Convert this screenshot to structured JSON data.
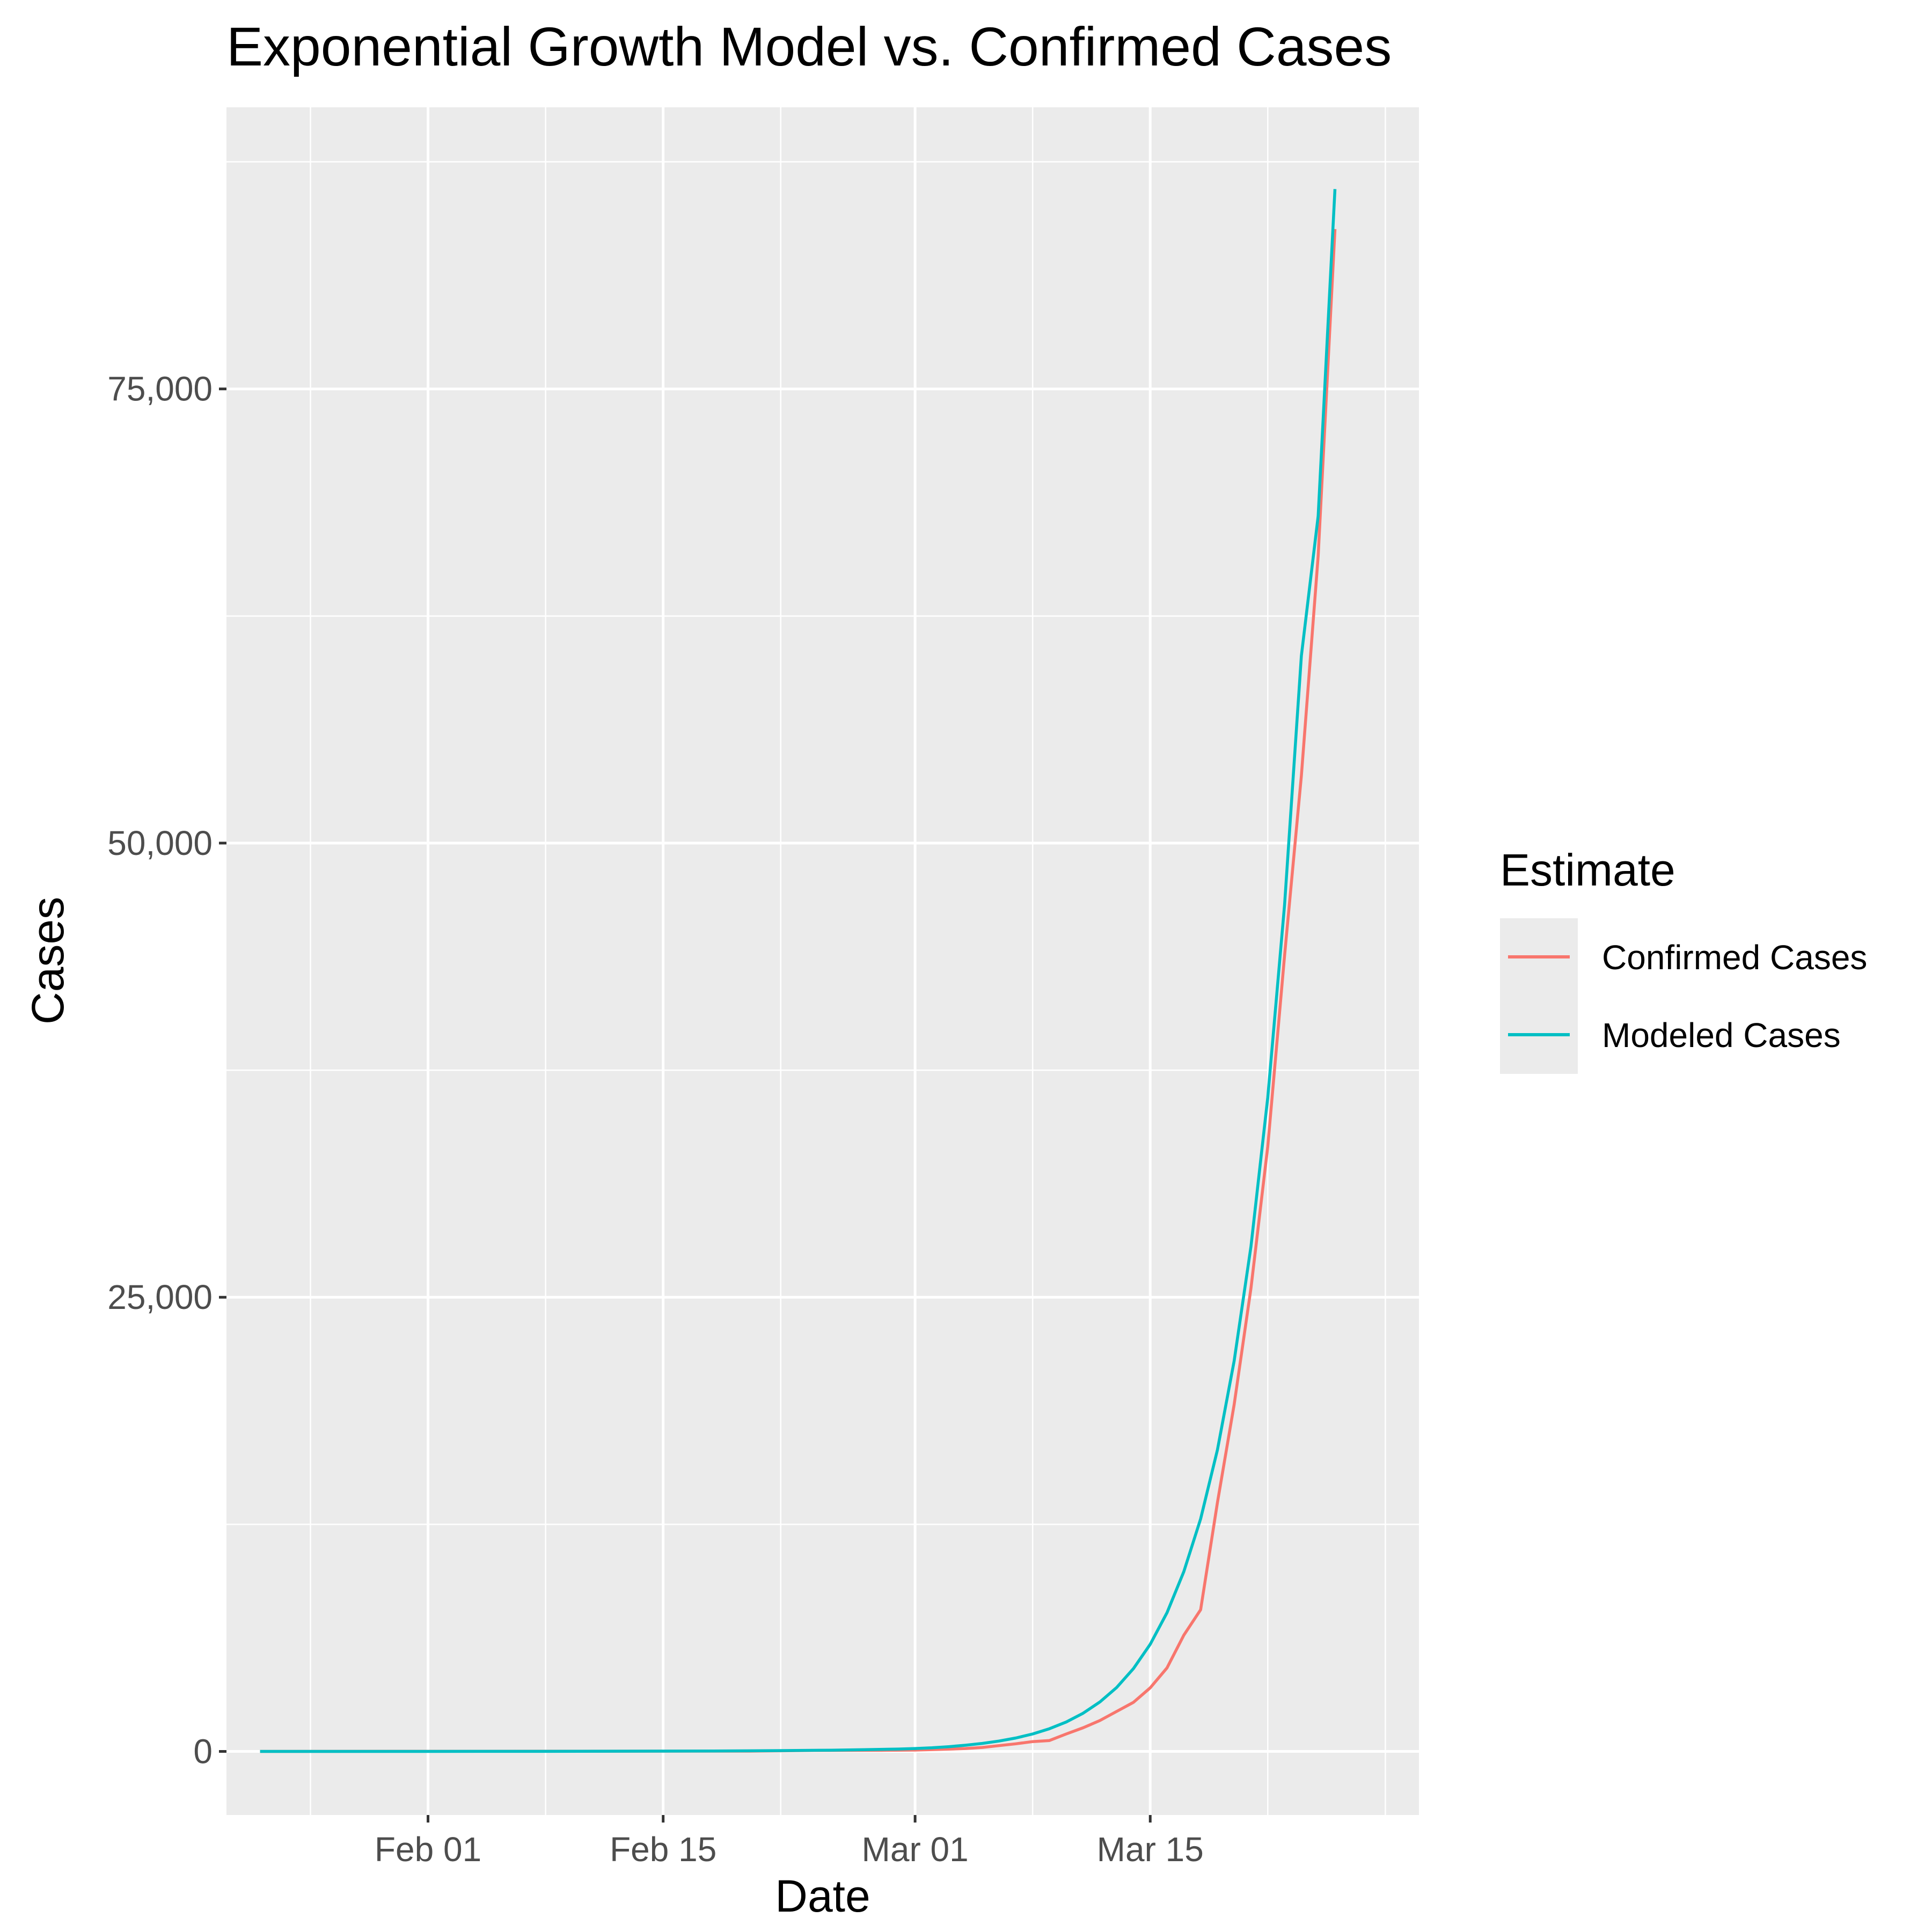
{
  "chart_data": {
    "type": "line",
    "title": "Exponential Growth Model vs. Confirmed Cases",
    "xlabel": "Date",
    "ylabel": "Cases",
    "xlim": [
      "2020-01-20",
      "2020-03-31"
    ],
    "ylim": [
      -3500,
      90500
    ],
    "x_ticks": [
      {
        "date": "2020-02-01",
        "label": "Feb 01"
      },
      {
        "date": "2020-02-15",
        "label": "Feb 15"
      },
      {
        "date": "2020-03-01",
        "label": "Mar 01"
      },
      {
        "date": "2020-03-15",
        "label": "Mar 15"
      }
    ],
    "x_minor_ticks": [
      "2020-01-25",
      "2020-02-08",
      "2020-02-22",
      "2020-03-08",
      "2020-03-22",
      "2020-03-29"
    ],
    "y_ticks": [
      {
        "value": 0,
        "label": "0"
      },
      {
        "value": 25000,
        "label": "25,000"
      },
      {
        "value": 50000,
        "label": "50,000"
      },
      {
        "value": 75000,
        "label": "75,000"
      }
    ],
    "y_minor_ticks": [
      12500,
      37500,
      62500,
      87500
    ],
    "grid": true,
    "legend": {
      "title": "Estimate",
      "position": "right"
    },
    "series": [
      {
        "name": "Confirmed Cases",
        "color": "#F8766D",
        "points": [
          [
            "2020-01-22",
            1
          ],
          [
            "2020-01-30",
            6
          ],
          [
            "2020-02-10",
            12
          ],
          [
            "2020-02-20",
            15
          ],
          [
            "2020-02-24",
            51
          ],
          [
            "2020-02-28",
            60
          ],
          [
            "2020-03-01",
            75
          ],
          [
            "2020-03-02",
            100
          ],
          [
            "2020-03-03",
            125
          ],
          [
            "2020-03-04",
            160
          ],
          [
            "2020-03-05",
            220
          ],
          [
            "2020-03-06",
            320
          ],
          [
            "2020-03-07",
            420
          ],
          [
            "2020-03-08",
            540
          ],
          [
            "2020-03-09",
            600
          ],
          [
            "2020-03-10",
            960
          ],
          [
            "2020-03-11",
            1300
          ],
          [
            "2020-03-12",
            1700
          ],
          [
            "2020-03-13",
            2200
          ],
          [
            "2020-03-14",
            2700
          ],
          [
            "2020-03-15",
            3500
          ],
          [
            "2020-03-16",
            4600
          ],
          [
            "2020-03-17",
            6400
          ],
          [
            "2020-03-18",
            7800
          ],
          [
            "2020-03-19",
            13700
          ],
          [
            "2020-03-20",
            19100
          ],
          [
            "2020-03-21",
            25500
          ],
          [
            "2020-03-22",
            33300
          ],
          [
            "2020-03-23",
            43800
          ],
          [
            "2020-03-24",
            53700
          ],
          [
            "2020-03-25",
            65800
          ],
          [
            "2020-03-26",
            83800
          ]
        ]
      },
      {
        "name": "Modeled Cases",
        "color": "#00BFC4",
        "points": [
          [
            "2020-01-22",
            0
          ],
          [
            "2020-02-01",
            2
          ],
          [
            "2020-02-10",
            8
          ],
          [
            "2020-02-18",
            25
          ],
          [
            "2020-02-22",
            45
          ],
          [
            "2020-02-25",
            70
          ],
          [
            "2020-02-27",
            95
          ],
          [
            "2020-02-29",
            130
          ],
          [
            "2020-03-01",
            160
          ],
          [
            "2020-03-02",
            200
          ],
          [
            "2020-03-03",
            260
          ],
          [
            "2020-03-04",
            340
          ],
          [
            "2020-03-05",
            440
          ],
          [
            "2020-03-06",
            570
          ],
          [
            "2020-03-07",
            740
          ],
          [
            "2020-03-08",
            960
          ],
          [
            "2020-03-09",
            1250
          ],
          [
            "2020-03-10",
            1620
          ],
          [
            "2020-03-11",
            2100
          ],
          [
            "2020-03-12",
            2720
          ],
          [
            "2020-03-13",
            3520
          ],
          [
            "2020-03-14",
            4560
          ],
          [
            "2020-03-15",
            5900
          ],
          [
            "2020-03-16",
            7640
          ],
          [
            "2020-03-17",
            9900
          ],
          [
            "2020-03-18",
            12800
          ],
          [
            "2020-03-19",
            16600
          ],
          [
            "2020-03-20",
            21500
          ],
          [
            "2020-03-21",
            27800
          ],
          [
            "2020-03-22",
            36000
          ],
          [
            "2020-03-23",
            46600
          ],
          [
            "2020-03-24",
            60300
          ],
          [
            "2020-03-25",
            68000
          ],
          [
            "2020-03-26",
            86000
          ]
        ]
      }
    ]
  }
}
